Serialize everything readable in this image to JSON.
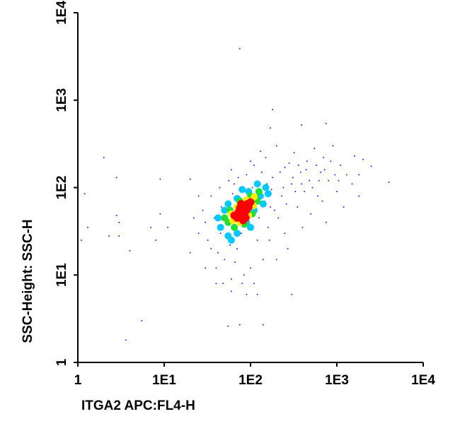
{
  "chart_data": {
    "type": "scatter",
    "log_x": true,
    "log_y": true,
    "x_label": "ITGA2 APC:FL4-H",
    "y_label": "SSC-Height: SSC-H",
    "xlim": [
      1,
      10000
    ],
    "ylim": [
      1,
      10000
    ],
    "xticks": [
      1,
      {
        "value": 10,
        "label": "1E1"
      },
      {
        "value": 100,
        "label": "1E2"
      },
      {
        "value": 1000,
        "label": "1E3"
      },
      {
        "value": 10000,
        "label": "1E4"
      }
    ],
    "yticks": [
      1,
      {
        "value": 10,
        "label": "1E1"
      },
      {
        "value": 100,
        "label": "1E2"
      },
      {
        "value": 1000,
        "label": "1E3"
      },
      {
        "value": 10000,
        "label": "1E4"
      }
    ],
    "series": [
      {
        "color": "#0000ff",
        "x": [
          1.2,
          1.1,
          1.3,
          2,
          2.8,
          2.8,
          3,
          2.3,
          3,
          4,
          3.6,
          5.5,
          9,
          9,
          8,
          7,
          11,
          75,
          180,
          170,
          390,
          750,
          20,
          25,
          300,
          140,
          55,
          75,
          120,
          4000,
          2500,
          2000,
          1800,
          30,
          35,
          40,
          45,
          50,
          55,
          60,
          65,
          70,
          80,
          90,
          100,
          110,
          120,
          130,
          140,
          150,
          160,
          170,
          180,
          200,
          210,
          230,
          250,
          270,
          300,
          320,
          350,
          380,
          400,
          420,
          450,
          480,
          500,
          550,
          600,
          650,
          700,
          750,
          800,
          900,
          1000,
          1100,
          1200,
          1300,
          1500,
          1600,
          1800,
          25,
          28,
          32,
          38,
          42,
          46,
          48,
          52,
          58,
          62,
          66,
          72,
          78,
          84,
          88,
          95,
          105,
          115,
          125,
          135,
          145,
          155,
          165,
          175,
          190,
          220,
          240,
          260,
          280,
          310,
          330,
          360,
          390,
          440,
          520,
          580,
          620,
          680,
          720,
          850,
          950,
          1050,
          35,
          44,
          56,
          20,
          22,
          30,
          40,
          60,
          90,
          110,
          200,
          250,
          100,
          130,
          60
        ],
        "y": [
          85,
          25,
          35,
          220,
          130,
          48,
          40,
          28,
          28,
          19,
          1.8,
          3,
          125,
          50,
          25,
          35,
          35,
          3900,
          780,
          480,
          520,
          540,
          125,
          80,
          6,
          2.7,
          2.6,
          2.7,
          6,
          115,
          175,
          210,
          140,
          40,
          20,
          12,
          30,
          15,
          70,
          9,
          110,
          20,
          8,
          140,
          12,
          180,
          25,
          90,
          15,
          220,
          35,
          60,
          130,
          300,
          45,
          80,
          170,
          20,
          110,
          250,
          60,
          150,
          35,
          90,
          200,
          120,
          50,
          280,
          80,
          150,
          220,
          40,
          120,
          300,
          90,
          180,
          60,
          140,
          110,
          230,
          80,
          30,
          55,
          25,
          45,
          18,
          60,
          8,
          40,
          22,
          85,
          14,
          130,
          30,
          10,
          75,
          40,
          100,
          60,
          45,
          150,
          70,
          110,
          25,
          95,
          55,
          150,
          100,
          65,
          190,
          130,
          90,
          180,
          110,
          160,
          100,
          180,
          120,
          70,
          160,
          200,
          140,
          120,
          80,
          100,
          120,
          18,
          45,
          12,
          8,
          6.5,
          6,
          8,
          15,
          30,
          200,
          260,
          160
        ]
      },
      {
        "color": "#00c8ff",
        "x": [
          45,
          55,
          70,
          90,
          110,
          130,
          150,
          120,
          95,
          70,
          50,
          42,
          60,
          100,
          140,
          80,
          160,
          55
        ],
        "y": [
          35,
          28,
          30,
          40,
          55,
          80,
          100,
          110,
          90,
          75,
          55,
          45,
          25,
          35,
          65,
          95,
          85,
          65
        ]
      },
      {
        "color": "#22dd33",
        "x": [
          55,
          65,
          85,
          105,
          120,
          125,
          100,
          75,
          58,
          50,
          95,
          115
        ],
        "y": [
          40,
          35,
          38,
          50,
          70,
          90,
          80,
          70,
          55,
          45,
          60,
          75
        ]
      },
      {
        "color": "#ffee00",
        "x": [
          62,
          75,
          95,
          108,
          110,
          90,
          70,
          60,
          85
        ],
        "y": [
          42,
          40,
          48,
          62,
          78,
          72,
          60,
          50,
          55
        ]
      },
      {
        "color": "#ff0000",
        "x": [
          70,
          78,
          85,
          90,
          95,
          80,
          72,
          85,
          100,
          75,
          88,
          65,
          92,
          82,
          78
        ],
        "y": [
          45,
          48,
          50,
          55,
          60,
          55,
          52,
          62,
          68,
          58,
          45,
          48,
          65,
          42,
          65
        ]
      }
    ]
  }
}
